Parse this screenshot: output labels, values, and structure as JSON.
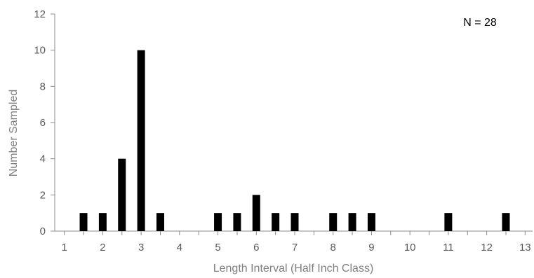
{
  "chart_data": {
    "type": "bar",
    "xlabel": "Length Interval (Half Inch Class)",
    "ylabel": "Number Sampled",
    "annotation": "N = 28",
    "xlim": [
      0.75,
      13.25
    ],
    "ylim": [
      0,
      12
    ],
    "x_ticks": [
      1,
      2,
      3,
      4,
      5,
      6,
      7,
      8,
      9,
      10,
      11,
      12,
      13
    ],
    "y_ticks": [
      0,
      2,
      4,
      6,
      8,
      10,
      12
    ],
    "grid": false,
    "points": [
      {
        "x": 1.5,
        "y": 1
      },
      {
        "x": 2.0,
        "y": 1
      },
      {
        "x": 2.5,
        "y": 4
      },
      {
        "x": 3.0,
        "y": 10
      },
      {
        "x": 3.5,
        "y": 1
      },
      {
        "x": 5.0,
        "y": 1
      },
      {
        "x": 5.5,
        "y": 1
      },
      {
        "x": 6.0,
        "y": 2
      },
      {
        "x": 6.5,
        "y": 1
      },
      {
        "x": 7.0,
        "y": 1
      },
      {
        "x": 8.0,
        "y": 1
      },
      {
        "x": 8.5,
        "y": 1
      },
      {
        "x": 9.0,
        "y": 1
      },
      {
        "x": 11.0,
        "y": 1
      },
      {
        "x": 12.5,
        "y": 1
      }
    ],
    "colors": {
      "bar": "#000000",
      "axis": "#8c8c8c"
    }
  }
}
